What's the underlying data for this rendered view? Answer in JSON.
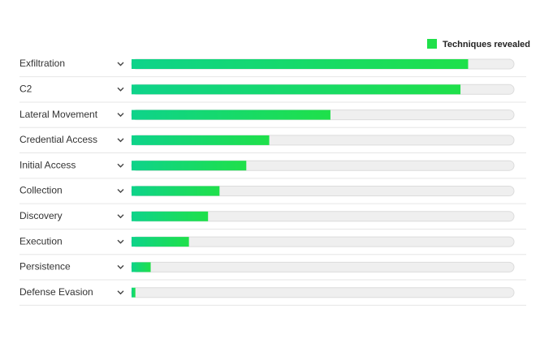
{
  "chart_data": {
    "type": "hbar",
    "categories": [
      "Exfiltration",
      "C2",
      "Lateral Movement",
      "Credential Access",
      "Initial Access",
      "Collection",
      "Discovery",
      "Execution",
      "Persistence",
      "Defense Evasion"
    ],
    "series": [
      {
        "name": "Techniques revealed",
        "color": "#1fe04a",
        "values": [
          88,
          86,
          52,
          36,
          30,
          23,
          20,
          15,
          5,
          1
        ]
      }
    ],
    "xlim": [
      0,
      100
    ],
    "legend": "top-right"
  }
}
